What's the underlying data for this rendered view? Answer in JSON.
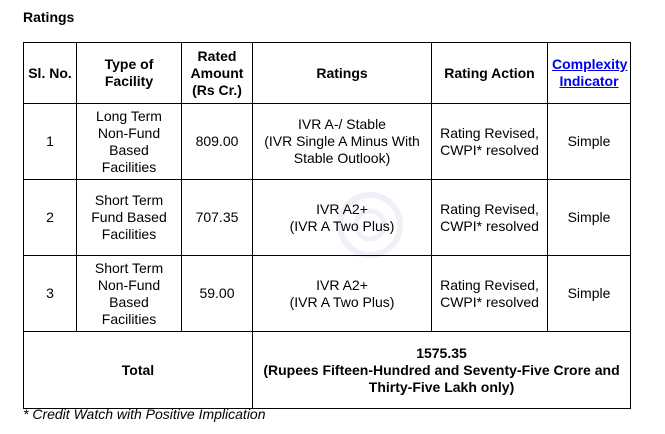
{
  "heading": "Ratings",
  "table": {
    "headers": {
      "sl_no": "Sl. No.",
      "facility_type": "Type of Facility",
      "rated_amount": "Rated Amount (Rs Cr.)",
      "ratings": "Ratings",
      "rating_action": "Rating Action",
      "complexity": "Complexity Indicator"
    },
    "rows": [
      {
        "sl_no": "1",
        "facility_type": "Long Term Non-Fund Based Facilities",
        "rated_amount": "809.00",
        "rating_line1": "IVR A-/ Stable",
        "rating_line2": "(IVR Single A Minus With Stable Outlook)",
        "rating_action": "Rating Revised, CWPI* resolved",
        "complexity": "Simple"
      },
      {
        "sl_no": "2",
        "facility_type": "Short Term Fund Based Facilities",
        "rated_amount": "707.35",
        "rating_line1": "IVR A2+",
        "rating_line2": "(IVR A Two Plus)",
        "rating_action": "Rating Revised, CWPI* resolved",
        "complexity": "Simple"
      },
      {
        "sl_no": "3",
        "facility_type": "Short Term Non-Fund Based Facilities",
        "rated_amount": "59.00",
        "rating_line1": "IVR A2+",
        "rating_line2": "(IVR A Two Plus)",
        "rating_action": "Rating Revised, CWPI* resolved",
        "complexity": "Simple"
      }
    ],
    "total": {
      "label": "Total",
      "amount": "1575.35",
      "words": "(Rupees Fifteen-Hundred and Seventy-Five Crore and Thirty-Five Lakh only)"
    }
  },
  "footnote": "* Credit Watch with Positive Implication",
  "colors": {
    "link": "#0000ee",
    "border": "#000000"
  }
}
